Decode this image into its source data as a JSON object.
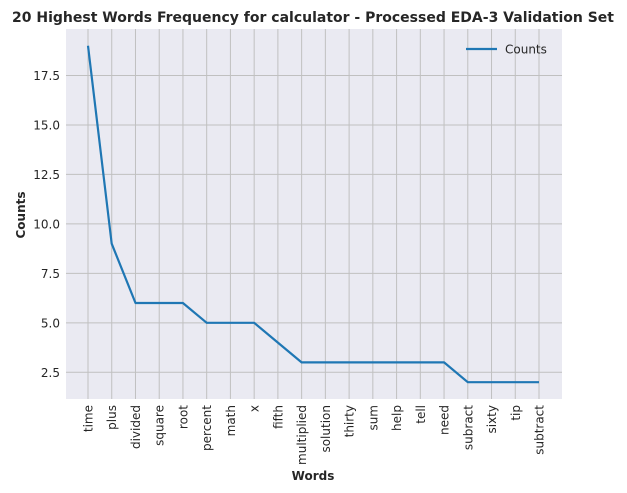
{
  "chart_data": {
    "type": "line",
    "title": "20 Highest Words Frequency for calculator - Processed EDA-3 Validation Set",
    "xlabel": "Words",
    "ylabel": "Counts",
    "categories": [
      "time",
      "plus",
      "divided",
      "square",
      "root",
      "percent",
      "math",
      "x",
      "fifth",
      "multiplied",
      "solution",
      "thirty",
      "sum",
      "help",
      "tell",
      "need",
      "subract",
      "sixty",
      "tip",
      "subtract"
    ],
    "series": [
      {
        "name": "Counts",
        "values": [
          19,
          9,
          6,
          6,
          6,
          5,
          5,
          5,
          4,
          3,
          3,
          3,
          3,
          3,
          3,
          3,
          2,
          2,
          2,
          2
        ]
      }
    ],
    "ylim": [
      1.15,
      19.85
    ],
    "yticks": [
      2.5,
      5.0,
      7.5,
      10.0,
      12.5,
      15.0,
      17.5
    ],
    "ytick_labels": [
      "2.5",
      "5.0",
      "7.5",
      "10.0",
      "12.5",
      "15.0",
      "17.5"
    ],
    "grid": true,
    "legend_position": "top-right",
    "colors": {
      "line": "#1f77b4",
      "plot_bg": "#eaeaf2",
      "grid": "#c0c0c0"
    }
  }
}
